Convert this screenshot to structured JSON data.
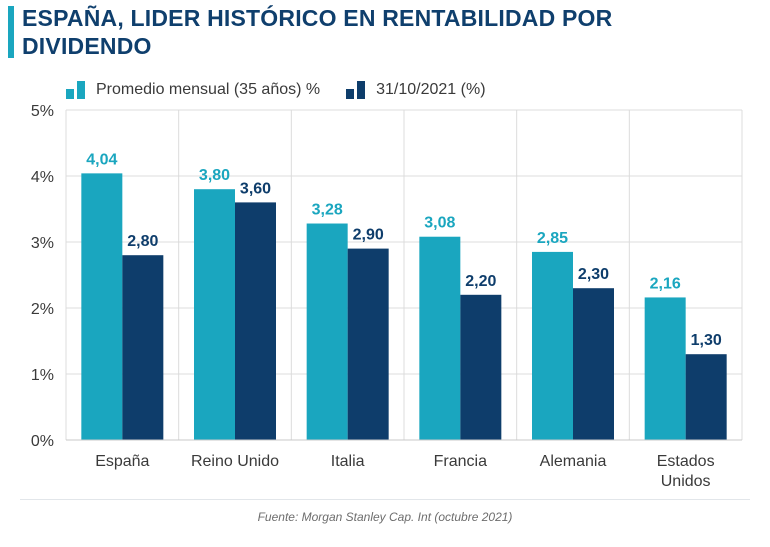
{
  "header": {
    "title": "ESPAÑA, LIDER HISTÓRICO EN RENTABILIDAD POR DIVIDENDO"
  },
  "colors": {
    "accent": "#1aa6bf",
    "series1": "#1aa6bf",
    "series2": "#0e3d6b",
    "title": "#0f3f6d",
    "grid": "#dcdcdc"
  },
  "footer": {
    "source": "Fuente: Morgan Stanley Cap. Int (octubre 2021)"
  },
  "chart_data": {
    "type": "bar",
    "categories": [
      "España",
      "Reino Unido",
      "Italia",
      "Francia",
      "Alemania",
      "Estados Unidos"
    ],
    "category_lines": [
      [
        "España"
      ],
      [
        "Reino Unido"
      ],
      [
        "Italia"
      ],
      [
        "Francia"
      ],
      [
        "Alemania"
      ],
      [
        "Estados",
        "Unidos"
      ]
    ],
    "series": [
      {
        "name": "Promedio mensual (35 años) %",
        "values": [
          4.04,
          3.8,
          3.28,
          3.08,
          2.85,
          2.16
        ],
        "labels": [
          "4,04",
          "3,80",
          "3,28",
          "3,08",
          "2,85",
          "2,16"
        ]
      },
      {
        "name": "31/10/2021 (%)",
        "values": [
          2.8,
          3.6,
          2.9,
          2.2,
          2.3,
          1.3
        ],
        "labels": [
          "2,80",
          "3,60",
          "2,90",
          "2,20",
          "2,30",
          "1,30"
        ]
      }
    ],
    "y_ticks": [
      0,
      1,
      2,
      3,
      4,
      5
    ],
    "y_tick_labels": [
      "0%",
      "1%",
      "2%",
      "3%",
      "4%",
      "5%"
    ],
    "ylim": [
      0,
      5
    ],
    "grid": true,
    "legend_position": "top-left"
  }
}
